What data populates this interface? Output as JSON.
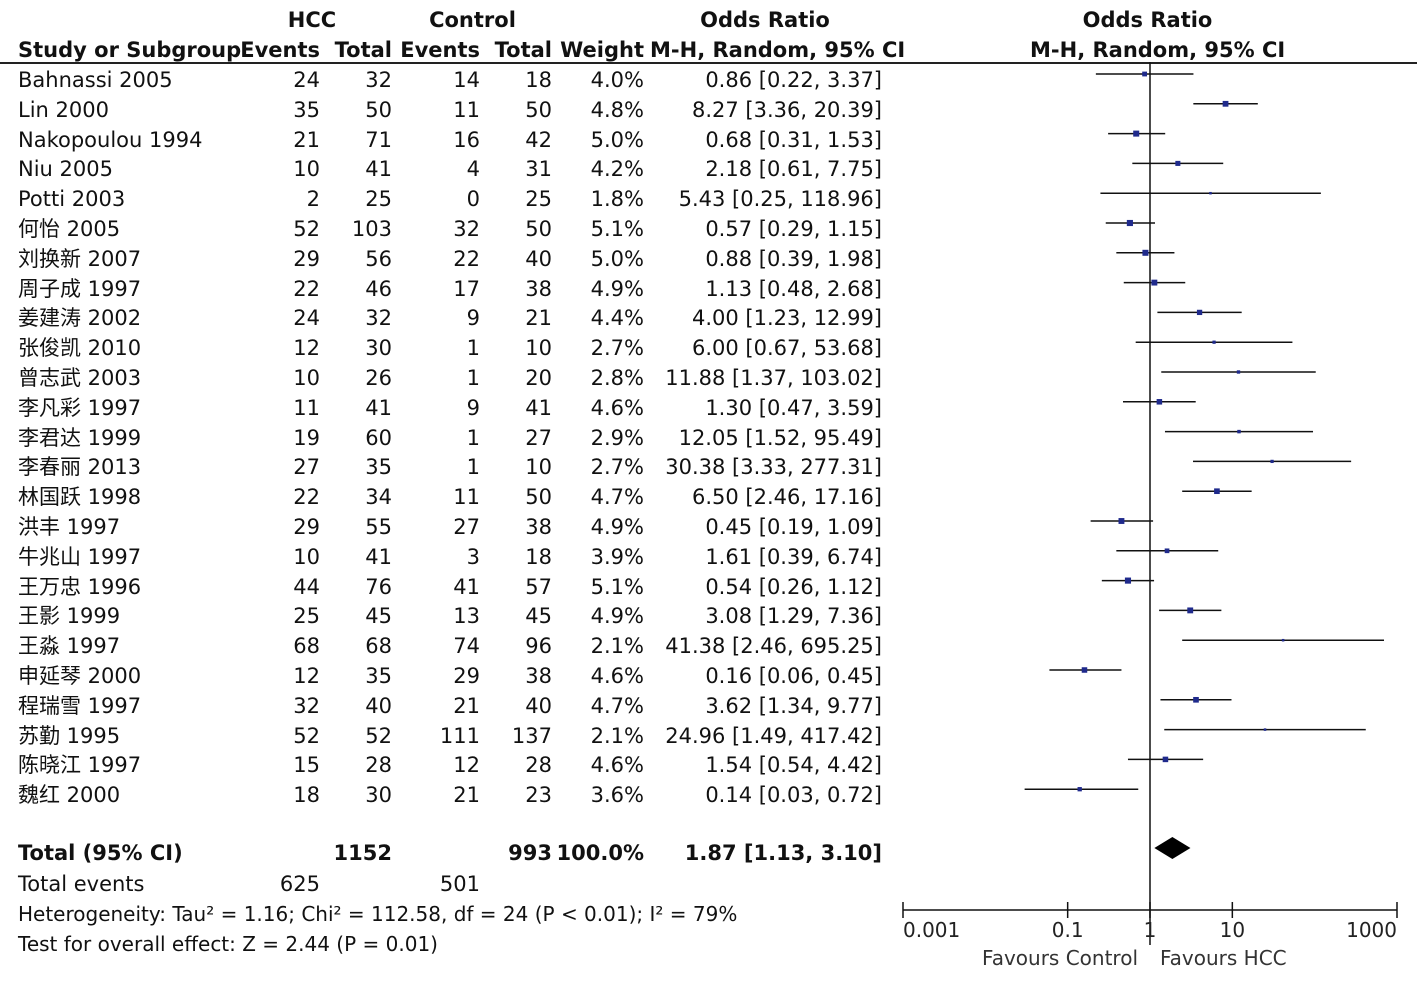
{
  "headers": {
    "hcc": "HCC",
    "control": "Control",
    "odds_ratio_table": "Odds Ratio",
    "odds_ratio_plot": "Odds Ratio",
    "study": "Study or Subgroup",
    "events1": "Events",
    "total1": "Total",
    "events2": "Events",
    "total2": "Total",
    "weight": "Weight",
    "method_table": "M-H, Random, 95% CI",
    "method_plot": "M-H, Random, 95% CI"
  },
  "chart_data": {
    "type": "forest",
    "x_scale": "log",
    "xlim": [
      0.001,
      1000
    ],
    "x_ticks": [
      "0.001",
      "0.1",
      "1",
      "10",
      "1000"
    ],
    "x_tick_values": [
      0.001,
      0.1,
      1,
      10,
      1000
    ],
    "reference_line": 1,
    "favours_left": "Favours Control",
    "favours_right": "Favours HCC",
    "marker_color": "#1f2a8c",
    "studies": [
      {
        "name": "Bahnassi 2005",
        "e1": "24",
        "t1": "32",
        "e2": "14",
        "t2": "18",
        "weight": "4.0%",
        "ci_text": "0.86 [0.22, 3.37]",
        "or": 0.86,
        "lo": 0.22,
        "hi": 3.37
      },
      {
        "name": "Lin 2000",
        "e1": "35",
        "t1": "50",
        "e2": "11",
        "t2": "50",
        "weight": "4.8%",
        "ci_text": "8.27 [3.36, 20.39]",
        "or": 8.27,
        "lo": 3.36,
        "hi": 20.39
      },
      {
        "name": "Nakopoulou 1994",
        "e1": "21",
        "t1": "71",
        "e2": "16",
        "t2": "42",
        "weight": "5.0%",
        "ci_text": "0.68 [0.31, 1.53]",
        "or": 0.68,
        "lo": 0.31,
        "hi": 1.53
      },
      {
        "name": "Niu 2005",
        "e1": "10",
        "t1": "41",
        "e2": "4",
        "t2": "31",
        "weight": "4.2%",
        "ci_text": "2.18 [0.61, 7.75]",
        "or": 2.18,
        "lo": 0.61,
        "hi": 7.75
      },
      {
        "name": "Potti 2003",
        "e1": "2",
        "t1": "25",
        "e2": "0",
        "t2": "25",
        "weight": "1.8%",
        "ci_text": "5.43 [0.25, 118.96]",
        "or": 5.43,
        "lo": 0.25,
        "hi": 118.96
      },
      {
        "name": "何怡 2005",
        "e1": "52",
        "t1": "103",
        "e2": "32",
        "t2": "50",
        "weight": "5.1%",
        "ci_text": "0.57 [0.29, 1.15]",
        "or": 0.57,
        "lo": 0.29,
        "hi": 1.15
      },
      {
        "name": "刘换新 2007",
        "e1": "29",
        "t1": "56",
        "e2": "22",
        "t2": "40",
        "weight": "5.0%",
        "ci_text": "0.88 [0.39, 1.98]",
        "or": 0.88,
        "lo": 0.39,
        "hi": 1.98
      },
      {
        "name": "周子成 1997",
        "e1": "22",
        "t1": "46",
        "e2": "17",
        "t2": "38",
        "weight": "4.9%",
        "ci_text": "1.13 [0.48, 2.68]",
        "or": 1.13,
        "lo": 0.48,
        "hi": 2.68
      },
      {
        "name": "姜建涛 2002",
        "e1": "24",
        "t1": "32",
        "e2": "9",
        "t2": "21",
        "weight": "4.4%",
        "ci_text": "4.00 [1.23, 12.99]",
        "or": 4.0,
        "lo": 1.23,
        "hi": 12.99
      },
      {
        "name": "张俊凯 2010",
        "e1": "12",
        "t1": "30",
        "e2": "1",
        "t2": "10",
        "weight": "2.7%",
        "ci_text": "6.00 [0.67, 53.68]",
        "or": 6.0,
        "lo": 0.67,
        "hi": 53.68
      },
      {
        "name": "曾志武 2003",
        "e1": "10",
        "t1": "26",
        "e2": "1",
        "t2": "20",
        "weight": "2.8%",
        "ci_text": "11.88 [1.37, 103.02]",
        "or": 11.88,
        "lo": 1.37,
        "hi": 103.02
      },
      {
        "name": "李凡彩 1997",
        "e1": "11",
        "t1": "41",
        "e2": "9",
        "t2": "41",
        "weight": "4.6%",
        "ci_text": "1.30 [0.47, 3.59]",
        "or": 1.3,
        "lo": 0.47,
        "hi": 3.59
      },
      {
        "name": "李君达 1999",
        "e1": "19",
        "t1": "60",
        "e2": "1",
        "t2": "27",
        "weight": "2.9%",
        "ci_text": "12.05 [1.52, 95.49]",
        "or": 12.05,
        "lo": 1.52,
        "hi": 95.49
      },
      {
        "name": "李春丽 2013",
        "e1": "27",
        "t1": "35",
        "e2": "1",
        "t2": "10",
        "weight": "2.7%",
        "ci_text": "30.38 [3.33, 277.31]",
        "or": 30.38,
        "lo": 3.33,
        "hi": 277.31
      },
      {
        "name": "林国跃 1998",
        "e1": "22",
        "t1": "34",
        "e2": "11",
        "t2": "50",
        "weight": "4.7%",
        "ci_text": "6.50 [2.46, 17.16]",
        "or": 6.5,
        "lo": 2.46,
        "hi": 17.16
      },
      {
        "name": "洪丰 1997",
        "e1": "29",
        "t1": "55",
        "e2": "27",
        "t2": "38",
        "weight": "4.9%",
        "ci_text": "0.45 [0.19, 1.09]",
        "or": 0.45,
        "lo": 0.19,
        "hi": 1.09
      },
      {
        "name": "牛兆山 1997",
        "e1": "10",
        "t1": "41",
        "e2": "3",
        "t2": "18",
        "weight": "3.9%",
        "ci_text": "1.61 [0.39, 6.74]",
        "or": 1.61,
        "lo": 0.39,
        "hi": 6.74
      },
      {
        "name": "王万忠 1996",
        "e1": "44",
        "t1": "76",
        "e2": "41",
        "t2": "57",
        "weight": "5.1%",
        "ci_text": "0.54 [0.26, 1.12]",
        "or": 0.54,
        "lo": 0.26,
        "hi": 1.12
      },
      {
        "name": "王影 1999",
        "e1": "25",
        "t1": "45",
        "e2": "13",
        "t2": "45",
        "weight": "4.9%",
        "ci_text": "3.08 [1.29, 7.36]",
        "or": 3.08,
        "lo": 1.29,
        "hi": 7.36
      },
      {
        "name": "王淼 1997",
        "e1": "68",
        "t1": "68",
        "e2": "74",
        "t2": "96",
        "weight": "2.1%",
        "ci_text": "41.38 [2.46, 695.25]",
        "or": 41.38,
        "lo": 2.46,
        "hi": 695.25
      },
      {
        "name": "申延琴 2000",
        "e1": "12",
        "t1": "35",
        "e2": "29",
        "t2": "38",
        "weight": "4.6%",
        "ci_text": "0.16 [0.06, 0.45]",
        "or": 0.16,
        "lo": 0.06,
        "hi": 0.45
      },
      {
        "name": "程瑞雪 1997",
        "e1": "32",
        "t1": "40",
        "e2": "21",
        "t2": "40",
        "weight": "4.7%",
        "ci_text": "3.62 [1.34, 9.77]",
        "or": 3.62,
        "lo": 1.34,
        "hi": 9.77
      },
      {
        "name": "苏勤 1995",
        "e1": "52",
        "t1": "52",
        "e2": "111",
        "t2": "137",
        "weight": "2.1%",
        "ci_text": "24.96 [1.49, 417.42]",
        "or": 24.96,
        "lo": 1.49,
        "hi": 417.42
      },
      {
        "name": "陈晓江 1997",
        "e1": "15",
        "t1": "28",
        "e2": "12",
        "t2": "28",
        "weight": "4.6%",
        "ci_text": "1.54 [0.54, 4.42]",
        "or": 1.54,
        "lo": 0.54,
        "hi": 4.42
      },
      {
        "name": "魏红 2000",
        "e1": "18",
        "t1": "30",
        "e2": "21",
        "t2": "23",
        "weight": "3.6%",
        "ci_text": "0.14 [0.03, 0.72]",
        "or": 0.14,
        "lo": 0.03,
        "hi": 0.72
      }
    ],
    "total": {
      "label": "Total (95% CI)",
      "t1": "1152",
      "t2": "993",
      "weight": "100.0%",
      "ci_text": "1.87 [1.13, 3.10]",
      "or": 1.87,
      "lo": 1.13,
      "hi": 3.1
    },
    "total_events": {
      "label": "Total events",
      "e1": "625",
      "e2": "501"
    },
    "heterogeneity": "Heterogeneity: Tau² = 1.16; Chi² = 112.58, df = 24 (P < 0.01); I² = 79%",
    "overall_effect": "Test for overall effect: Z = 2.44 (P = 0.01)"
  }
}
